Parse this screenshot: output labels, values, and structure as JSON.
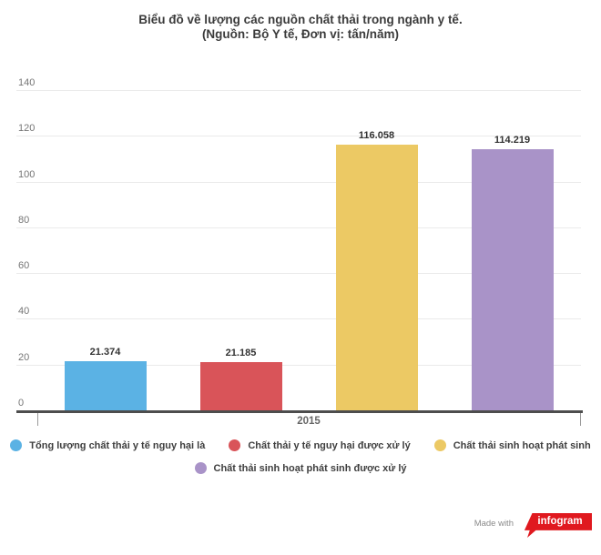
{
  "title": {
    "line1": "Biểu đồ về lượng các nguồn chất thải trong ngành y tế.",
    "line2": "(Nguồn: Bộ Y tế, Đơn vị: tấn/năm)"
  },
  "chart_data": {
    "type": "bar",
    "categories": [
      "2015"
    ],
    "series": [
      {
        "name": "Tổng lượng chất thải y tế nguy hại là",
        "color": "#5BB2E4",
        "values": [
          21.374
        ],
        "labels": [
          "21.374"
        ]
      },
      {
        "name": "Chất thải y tế nguy hại được xử lý",
        "color": "#D95459",
        "values": [
          21.185
        ],
        "labels": [
          "21.185"
        ]
      },
      {
        "name": "Chất thải sinh hoạt phát sinh",
        "color": "#ECC964",
        "values": [
          116.058
        ],
        "labels": [
          "116.058"
        ]
      },
      {
        "name": "Chất thải sinh hoạt phát sinh được xử lý",
        "color": "#A993C8",
        "values": [
          114.219
        ],
        "labels": [
          "114.219"
        ]
      }
    ],
    "ylim": [
      0,
      140
    ],
    "yticks": [
      0,
      20,
      40,
      60,
      80,
      100,
      120,
      140
    ],
    "grid": true,
    "legend_position": "bottom",
    "xlabel": "",
    "ylabel": ""
  },
  "footer": {
    "made_with": "Made with",
    "logo_text": "infogram",
    "logo_color": "#E0191F"
  }
}
